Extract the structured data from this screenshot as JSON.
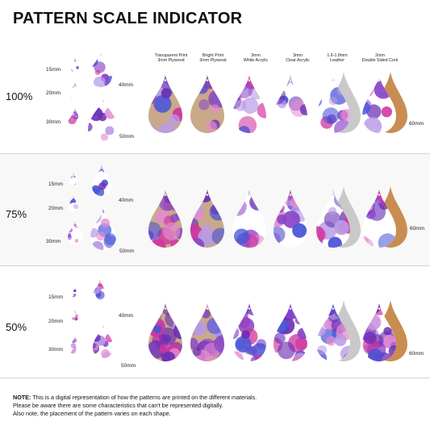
{
  "title": "PATTERN SCALE INDICATOR",
  "materials": [
    "Transparent Print\n3mm Plywood",
    "Bright Print\n3mm Plywood",
    "3mm\nWhite Acrylic",
    "3mm\nClear Acrylic",
    "1.6-1.8mm\nLeather",
    "2mm\nDouble Sided Cork"
  ],
  "sections": [
    {
      "scale": "100%",
      "sizes": [
        "15mm",
        "20mm",
        "30mm",
        "40mm",
        "50mm"
      ],
      "material_size": "60mm"
    },
    {
      "scale": "75%",
      "sizes": [
        "15mm",
        "20mm",
        "30mm",
        "40mm",
        "50mm"
      ],
      "material_size": "60mm"
    },
    {
      "scale": "50%",
      "sizes": [
        "15mm",
        "20mm",
        "30mm",
        "40mm",
        "50mm"
      ],
      "material_size": "60mm"
    }
  ],
  "note": {
    "label": "NOTE:",
    "line1": " This is a digital representation of how the patterns are printed on the different materials.",
    "line2": "Please be aware there are some characteristics that can't be represented digitally.",
    "line3": "Also note, the placement of the pattern varies on each shape."
  },
  "colors": {
    "violet": "#6a2fb5",
    "purple": "#8b45c9",
    "magenta": "#d0359f",
    "lavender": "#b89be6",
    "blue": "#4a55d6",
    "pink": "#e48ad0",
    "plywood": "#c9a98a",
    "leather": "#c9c9c9",
    "cork": "#c98d52"
  }
}
